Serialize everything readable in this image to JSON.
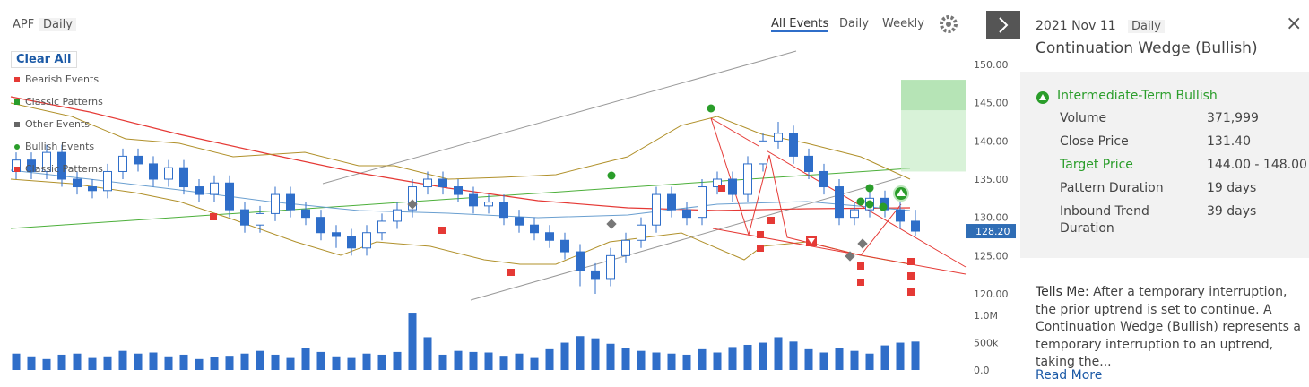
{
  "header": {
    "symbol": "APF",
    "interval": "Daily",
    "tabs": [
      "All Events",
      "Daily",
      "Weekly"
    ]
  },
  "legend": {
    "clear": "Clear All",
    "items": [
      "Bearish Events",
      "Classic Patterns",
      "Other Events",
      "Bullish Events",
      "Classic Patterns"
    ]
  },
  "chart_data": {
    "type": "candlestick",
    "open": [
      136,
      137.5,
      136,
      138.5,
      135,
      134,
      133.5,
      136,
      138,
      137,
      135,
      136.5,
      134,
      133,
      134.5,
      131,
      129,
      130.5,
      133,
      131,
      130,
      128,
      127.5,
      126,
      128,
      129.5,
      131,
      134,
      135,
      134,
      133,
      131.5,
      132,
      130,
      129,
      128,
      127,
      125.5,
      123,
      122,
      125,
      127,
      129,
      133,
      131,
      130,
      134,
      135,
      133,
      137,
      140,
      141,
      138,
      136,
      134,
      130,
      131,
      132.5,
      131,
      129.5
    ],
    "high": [
      138.5,
      138.5,
      139.5,
      139.5,
      136,
      135,
      137,
      139,
      139,
      138,
      137.5,
      137.5,
      135,
      135.5,
      135.5,
      132,
      131.5,
      134,
      134,
      132,
      131,
      129,
      128.5,
      129,
      130.5,
      132,
      135,
      136,
      136,
      135,
      134,
      133,
      133,
      131,
      130,
      129,
      128,
      126.5,
      124,
      126,
      128,
      130,
      134,
      134,
      132,
      135,
      136,
      136,
      138,
      141,
      142.5,
      142,
      139,
      137,
      135,
      132,
      133.5,
      133.5,
      132,
      131
    ],
    "low": [
      135,
      135,
      135,
      134,
      133,
      132.5,
      132.5,
      135,
      136,
      134,
      134,
      133,
      132,
      132,
      130,
      128,
      128,
      129.5,
      130,
      129,
      127,
      126,
      125,
      125,
      127,
      128.5,
      130,
      133,
      133,
      132,
      130.5,
      130.5,
      129,
      128,
      127,
      126,
      124.5,
      121,
      120,
      121,
      124,
      126,
      128,
      130,
      129,
      129,
      133,
      132,
      132,
      136,
      139,
      137,
      135,
      133,
      129,
      129,
      130,
      130,
      128.5,
      127.5
    ],
    "close": [
      137.5,
      136,
      138.5,
      135,
      134,
      133.5,
      136,
      138,
      137,
      135,
      136.5,
      134,
      133,
      134.5,
      131,
      129,
      130.5,
      133,
      131,
      130,
      128,
      127.5,
      126,
      128,
      129.5,
      131,
      134,
      135,
      134,
      133,
      131.5,
      132,
      130,
      129,
      128,
      127,
      125.5,
      123,
      122,
      125,
      127,
      129,
      133,
      131,
      130,
      134,
      135,
      133,
      137,
      140,
      141,
      138,
      136,
      134,
      130,
      131,
      132.5,
      131,
      129.5,
      128.2
    ],
    "volume": [
      300000,
      250000,
      200000,
      280000,
      300000,
      220000,
      250000,
      350000,
      300000,
      320000,
      250000,
      280000,
      200000,
      230000,
      260000,
      300000,
      350000,
      280000,
      220000,
      400000,
      330000,
      250000,
      220000,
      300000,
      280000,
      330000,
      1050000,
      600000,
      280000,
      350000,
      330000,
      320000,
      260000,
      300000,
      220000,
      380000,
      500000,
      620000,
      580000,
      480000,
      400000,
      350000,
      320000,
      300000,
      280000,
      380000,
      320000,
      420000,
      460000,
      500000,
      600000,
      520000,
      380000,
      320000,
      400000,
      350000,
      300000,
      450000,
      500000,
      520000
    ],
    "up_color": "#ffffff",
    "down_color": "#2f6ec9",
    "ylim": [
      118.5,
      151.5
    ],
    "yticks": [
      {
        "value": 120,
        "label": "120.00"
      },
      {
        "value": 125,
        "label": "125.00"
      },
      {
        "value": 130,
        "label": "130.00"
      },
      {
        "value": 135,
        "label": "135.00"
      },
      {
        "value": 140,
        "label": "140.00"
      },
      {
        "value": 145,
        "label": "145.00"
      },
      {
        "value": 150,
        "label": "150.00"
      }
    ],
    "vlim": [
      0,
      1100000
    ],
    "vticks": [
      {
        "value": 0,
        "label": "0.0"
      },
      {
        "value": 500000,
        "label": "500k"
      },
      {
        "value": 1000000,
        "label": "1.0M"
      }
    ],
    "current_price": {
      "value": 128.2,
      "label": "128.20"
    },
    "target_zone": [
      136,
      148
    ]
  },
  "panel": {
    "date": "2021 Nov 11",
    "interval": "Daily",
    "title": "Continuation Wedge (Bullish)",
    "signal": "Intermediate-Term Bullish",
    "rows": [
      [
        "Volume",
        "371,999"
      ],
      [
        "Close Price",
        "131.40"
      ],
      [
        "Target Price",
        "144.00 - 148.00"
      ],
      [
        "Pattern Duration",
        "19 days"
      ],
      [
        "Inbound Trend Duration",
        "39 days"
      ]
    ],
    "tells_label": "Tells Me:",
    "tells_text": "After a temporary interruption, the prior uptrend is set to continue. A Continuation Wedge (Bullish) represents a temporary interruption to an uptrend, taking the...",
    "read_more": "Read More"
  }
}
